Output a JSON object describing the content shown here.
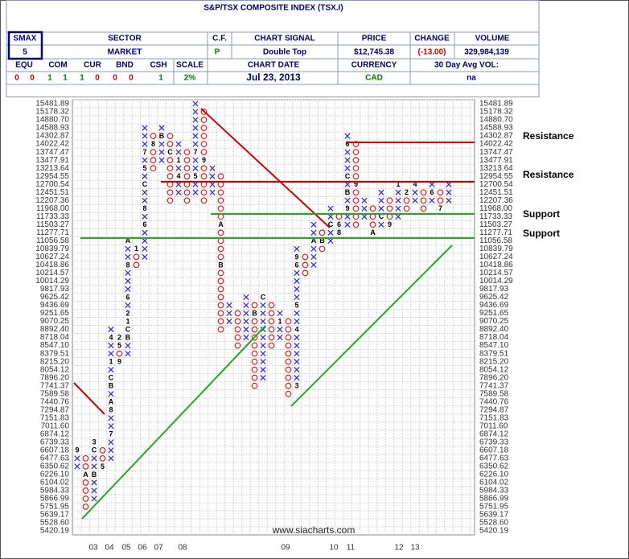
{
  "header": {
    "title": "S&P/TSX COMPOSITE INDEX (TSX.I)",
    "smax_label": "SMAX",
    "smax": 5,
    "sector_label": "SECTOR",
    "sector": "MARKET",
    "cf_label": "C.F.",
    "cf": "P",
    "signal_label": "CHART SIGNAL",
    "signal": "Double Top",
    "price_label": "PRICE",
    "price": "$12,745.38",
    "change_label": "CHANGE",
    "change": "(-13.00)",
    "volume_label": "VOLUME",
    "volume": "329,984,139",
    "allocation_labels": [
      "EQU",
      "COM",
      "CUR",
      "BND",
      "CSH"
    ],
    "allocation": [
      0,
      0,
      1,
      1,
      1,
      0,
      0,
      0,
      1
    ],
    "scale_label": "SCALE",
    "scale": "2%",
    "date_label": "CHART DATE",
    "date": "Jul 23, 2013",
    "currency_label": "CURRENCY",
    "currency": "CAD",
    "avg_vol_label": "30 Day Avg VOL:",
    "avg_vol": "na"
  },
  "chart_data": {
    "type": "point_and_figure",
    "x_color": "#3333cc",
    "o_color": "#cc2222",
    "grid": true,
    "yticks": [
      15481.89,
      15178.32,
      {
        "value": 14880.7,
        "label": "14880.70"
      },
      14588.93,
      14302.87,
      14022.42,
      13747.47,
      13477.91,
      13213.64,
      12954.55,
      12700.54,
      12451.51,
      12207.36,
      {
        "value": 11968,
        "label": "11968.00"
      },
      11733.33,
      11503.27,
      11277.71,
      11056.58,
      10839.79,
      10627.24,
      10418.86,
      10214.57,
      10014.29,
      9817.93,
      9625.42,
      9436.69,
      9251.65,
      9070.25,
      {
        "value": 8892.4,
        "label": "8892.40"
      },
      8718.04,
      {
        "value": 8547.1,
        "label": "8547.10"
      },
      8379.51,
      {
        "value": 8215.2,
        "label": "8215.20"
      },
      8054.12,
      {
        "value": 7896.2,
        "label": "7896.20"
      },
      7741.37,
      7589.58,
      7440.76,
      7294.87,
      7151.83,
      {
        "value": 7011.6,
        "label": "7011.60"
      },
      6874.12,
      6739.33,
      6607.18,
      6477.63,
      6350.62,
      {
        "value": 6226.1,
        "label": "6226.10"
      },
      6104.02,
      5984.33,
      5866.99,
      5751.95,
      5639.17,
      {
        "value": 5528.6,
        "label": "5528.60"
      },
      5420.19
    ],
    "columns": [
      {
        "type": "X",
        "top": 6607.18,
        "bottom": 6350.62,
        "months": [
          {
            "level": 6607.18,
            "label": "9"
          }
        ]
      },
      {
        "type": "O",
        "top": 6477.63,
        "bottom": 5751.95,
        "months": [
          {
            "level": 6226.1,
            "label": "A"
          }
        ]
      },
      {
        "type": "X",
        "top": 6739.33,
        "bottom": 5866.99,
        "months": [
          {
            "level": 6226.1,
            "label": "B"
          },
          {
            "level": 6607.18,
            "label": "C"
          },
          {
            "level": 6739.33,
            "label": "3"
          }
        ]
      },
      {
        "type": "O",
        "top": 6607.18,
        "bottom": 6350.62,
        "months": [
          {
            "level": 6350.62,
            "label": "5"
          }
        ]
      },
      {
        "type": "X",
        "top": 8892.4,
        "bottom": 6477.63,
        "months": [
          {
            "level": 6874.12,
            "label": "7"
          },
          {
            "level": 7294.87,
            "label": "8"
          },
          {
            "level": 7440.76,
            "label": "A"
          },
          {
            "level": 7741.37,
            "label": "B"
          },
          {
            "level": 7896.2,
            "label": "C"
          },
          {
            "level": 8215.2,
            "label": "1"
          },
          {
            "level": 8718.04,
            "label": "4"
          }
        ]
      },
      {
        "type": "O",
        "top": 8718.04,
        "bottom": 8215.2,
        "months": [
          {
            "level": 8718.04,
            "label": "2"
          },
          {
            "level": 8547.1,
            "label": "5"
          },
          {
            "level": 8215.2,
            "label": "9"
          }
        ]
      },
      {
        "type": "X",
        "top": 11056.58,
        "bottom": 8379.51,
        "months": [
          {
            "level": 8718.04,
            "label": "B"
          },
          {
            "level": 8892.4,
            "label": "C"
          },
          {
            "level": 9070.25,
            "label": "1"
          },
          {
            "level": 9251.65,
            "label": "2"
          },
          {
            "level": 9625.42,
            "label": "6"
          },
          {
            "level": 10418.86,
            "label": "8"
          },
          {
            "level": 11056.58,
            "label": "A"
          }
        ]
      },
      {
        "type": "O",
        "top": 10839.79,
        "bottom": 10418.86,
        "months": [
          {
            "level": 10839.79,
            "label": "1"
          }
        ]
      },
      {
        "type": "X",
        "top": 14588.93,
        "bottom": 10627.24,
        "months": [
          {
            "level": 11503.27,
            "label": "6"
          },
          {
            "level": 11968,
            "label": "8"
          },
          {
            "level": 12700.54,
            "label": "C"
          },
          {
            "level": 13213.64,
            "label": "5"
          },
          {
            "level": 13747.47,
            "label": "7"
          }
        ]
      },
      {
        "type": "O",
        "top": 14302.87,
        "bottom": 13213.64,
        "months": [
          {
            "level": 14022.42,
            "label": "8"
          }
        ]
      },
      {
        "type": "X",
        "top": 14588.93,
        "bottom": 13477.91,
        "months": [
          {
            "level": 14302.87,
            "label": "B"
          }
        ]
      },
      {
        "type": "O",
        "top": 14302.87,
        "bottom": 12207.36,
        "months": [
          {
            "level": 13747.47,
            "label": "C"
          }
        ]
      },
      {
        "type": "X",
        "top": 14022.42,
        "bottom": 12451.51,
        "months": [
          {
            "level": 13477.91,
            "label": "1"
          },
          {
            "level": 12954.55,
            "label": "4"
          }
        ]
      },
      {
        "type": "O",
        "top": 13747.47,
        "bottom": 12207.36
      },
      {
        "type": "X",
        "top": 15481.89,
        "bottom": 12451.51,
        "months": [
          {
            "level": 12954.55,
            "label": "5"
          },
          {
            "level": 13747.47,
            "label": "7"
          }
        ]
      },
      {
        "type": "O",
        "top": 15178.32,
        "bottom": 12207.36,
        "months": [
          {
            "level": 13477.91,
            "label": "9"
          }
        ]
      },
      {
        "type": "X",
        "top": 13213.64,
        "bottom": 12451.51
      },
      {
        "type": "O",
        "top": 12954.55,
        "bottom": 8892.4,
        "months": [
          {
            "level": 11503.27,
            "label": "A"
          },
          {
            "level": 10418.86,
            "label": "B"
          }
        ]
      },
      {
        "type": "X",
        "top": 9436.69,
        "bottom": 9070.25
      },
      {
        "type": "O",
        "top": 9251.65,
        "bottom": 8547.1
      },
      {
        "type": "X",
        "top": 9625.42,
        "bottom": 8718.04
      },
      {
        "type": "O",
        "top": 9436.69,
        "bottom": 7741.37,
        "months": [
          {
            "level": 9251.65,
            "label": "B"
          }
        ]
      },
      {
        "type": "X",
        "top": 9625.42,
        "bottom": 7896.2,
        "months": [
          {
            "level": 9625.42,
            "label": "C"
          }
        ]
      },
      {
        "type": "O",
        "top": 9436.69,
        "bottom": 8547.1
      },
      {
        "type": "X",
        "top": 9251.65,
        "bottom": 8718.04,
        "months": [
          {
            "level": 9070.25,
            "label": "1"
          }
        ]
      },
      {
        "type": "O",
        "top": 9070.25,
        "bottom": 7589.58
      },
      {
        "type": "X",
        "top": 10839.79,
        "bottom": 7741.37,
        "months": [
          {
            "level": 7741.37,
            "label": "3"
          },
          {
            "level": 8892.4,
            "label": "4"
          },
          {
            "level": 9436.69,
            "label": "5"
          },
          {
            "level": 10418.86,
            "label": "6"
          },
          {
            "level": 10627.24,
            "label": "9"
          }
        ]
      },
      {
        "type": "O",
        "top": 10627.24,
        "bottom": 10214.57
      },
      {
        "type": "X",
        "top": 11503.27,
        "bottom": 10418.86,
        "months": [
          {
            "level": 11056.58,
            "label": "A"
          }
        ]
      },
      {
        "type": "O",
        "top": 11277.71,
        "bottom": 10839.79,
        "months": [
          {
            "level": 11056.58,
            "label": "B"
          }
        ]
      },
      {
        "type": "X",
        "top": 11968,
        "bottom": 11056.58,
        "months": [
          {
            "level": 11503.27,
            "label": "C"
          }
        ]
      },
      {
        "type": "O",
        "top": 11733.33,
        "bottom": 11277.71,
        "months": [
          {
            "level": 11503.27,
            "label": "6"
          },
          {
            "level": 11277.71,
            "label": "8"
          }
        ]
      },
      {
        "type": "X",
        "top": 14302.87,
        "bottom": 11503.27,
        "months": [
          {
            "level": 11968,
            "label": "9"
          },
          {
            "level": 12451.51,
            "label": "B"
          },
          {
            "level": 12954.55,
            "label": "C"
          },
          {
            "level": 14022.42,
            "label": "6"
          }
        ]
      },
      {
        "type": "O",
        "top": 14022.42,
        "bottom": 11503.27,
        "months": [
          {
            "level": 12700.54,
            "label": "9"
          }
        ]
      },
      {
        "type": "X",
        "top": 12207.36,
        "bottom": 11733.33
      },
      {
        "type": "O",
        "top": 11968,
        "bottom": 11277.71,
        "months": [
          {
            "level": 11277.71,
            "label": "A"
          }
        ]
      },
      {
        "type": "X",
        "top": 12451.51,
        "bottom": 11503.27,
        "months": [
          {
            "level": 11733.33,
            "label": "C"
          }
        ]
      },
      {
        "type": "O",
        "top": 12207.36,
        "bottom": 11503.27,
        "months": [
          {
            "level": 11503.27,
            "label": "9"
          }
        ]
      },
      {
        "type": "X",
        "top": 12700.54,
        "bottom": 11733.33,
        "months": [
          {
            "level": 12700.54,
            "label": "1"
          }
        ]
      },
      {
        "type": "O",
        "top": 12451.51,
        "bottom": 11968,
        "months": [
          {
            "level": 12451.51,
            "label": "2"
          }
        ]
      },
      {
        "type": "X",
        "top": 12700.54,
        "bottom": 12207.36,
        "months": [
          {
            "level": 12700.54,
            "label": "4"
          }
        ]
      },
      {
        "type": "O",
        "top": 12451.51,
        "bottom": 11968
      },
      {
        "type": "X",
        "top": 12700.54,
        "bottom": 12207.36,
        "months": [
          {
            "level": 12451.51,
            "label": "6"
          }
        ]
      },
      {
        "type": "O",
        "top": 12451.51,
        "bottom": 11968,
        "months": [
          {
            "level": 11968,
            "label": "7"
          }
        ]
      },
      {
        "type": "X",
        "top": 12700.54,
        "bottom": 12207.36
      }
    ],
    "x_labels": [
      "03",
      "04",
      "05",
      "06",
      "07",
      "08",
      "09",
      "10",
      "11",
      "12",
      "13"
    ],
    "annotations": [
      "Resistance",
      "Resistance",
      "Support",
      "Support"
    ],
    "source": "www.siacharts.com"
  }
}
